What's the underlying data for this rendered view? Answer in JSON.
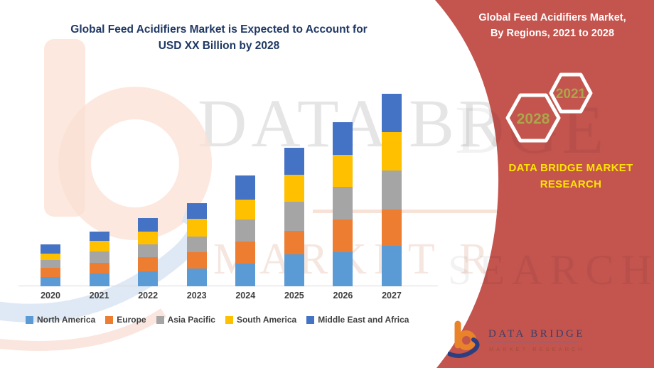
{
  "left_title": {
    "line1": "Global Feed Acidifiers Market is Expected to Account for",
    "line2": "USD XX Billion by 2028",
    "color": "#1F3864"
  },
  "right_panel": {
    "background": "#C3544E",
    "title_line1": "Global Feed Acidifiers Market,",
    "title_line2": "By Regions, 2021 to 2028",
    "hexagons": [
      {
        "label": "2028"
      },
      {
        "label": "2021"
      }
    ],
    "hex_text_color": "#ABA64B",
    "brand_line1": "DATA BRIDGE MARKET",
    "brand_line2": "RESEARCH",
    "brand_color": "#FFE400",
    "footer_logo": {
      "name": "DATA BRIDGE",
      "subtitle": "MARKET RESEARCH"
    }
  },
  "watermark": {
    "text1": "DATA BRIDGE",
    "text2": "MARKET RE"
  },
  "chart_data": {
    "type": "bar",
    "stacked": true,
    "title": "Global Feed Acidifiers Market is Expected to Account for USD XX Billion by 2028",
    "categories": [
      "2020",
      "2021",
      "2022",
      "2023",
      "2024",
      "2025",
      "2026",
      "2027"
    ],
    "series": [
      {
        "name": "North America",
        "color": "#5B9BD5",
        "values": [
          13,
          18,
          21,
          25,
          32,
          45,
          48,
          57
        ]
      },
      {
        "name": "Europe",
        "color": "#ED7D31",
        "values": [
          13,
          15,
          20,
          23,
          31,
          33,
          46,
          51
        ]
      },
      {
        "name": "Asia Pacific",
        "color": "#A5A5A5",
        "values": [
          11,
          16,
          18,
          22,
          31,
          41,
          46,
          55
        ]
      },
      {
        "name": "South America",
        "color": "#FFC000",
        "values": [
          9,
          15,
          18,
          25,
          28,
          38,
          45,
          54
        ]
      },
      {
        "name": "Middle East and Africa",
        "color": "#4472C4",
        "values": [
          13,
          13,
          19,
          22,
          34,
          38,
          46,
          54
        ]
      }
    ],
    "totals": [
      59,
      77,
      96,
      117,
      156,
      195,
      231,
      271
    ],
    "value_units": "relative (y-axis not labeled; chart reads USD XX Billion)",
    "ylim": [
      0,
      280
    ],
    "xlabel": "",
    "ylabel": "",
    "grid": false,
    "y_axis_shown": false,
    "axis_line_color": "#D9D9D9",
    "legend_position": "bottom"
  }
}
